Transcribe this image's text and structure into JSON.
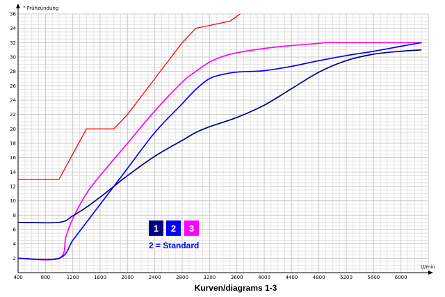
{
  "chart_data": {
    "type": "line",
    "ylabel": "° Frühzündung",
    "xlabel": "U/min",
    "caption": "Kurven/diagrams  1-3",
    "xlim": [
      400,
      6400
    ],
    "ylim": [
      0,
      36
    ],
    "x_ticks": [
      "400",
      "800",
      "1200",
      "1600",
      "2000",
      "2400",
      "2800",
      "3200",
      "3600",
      "4000",
      "4400",
      "4800",
      "5200",
      "5600",
      "6000"
    ],
    "y_ticks": [
      "2",
      "4",
      "6",
      "8",
      "10",
      "12",
      "14",
      "16",
      "18",
      "20",
      "22",
      "24",
      "26",
      "28",
      "30",
      "32",
      "34",
      "36"
    ],
    "grid": true,
    "legend": {
      "badges": [
        {
          "label": "1",
          "color": "#000080"
        },
        {
          "label": "2",
          "color": "#0000ff"
        },
        {
          "label": "3",
          "color": "#ff00ff"
        }
      ],
      "note": "2 = Standard",
      "note_color": "#0000ff"
    },
    "series": [
      {
        "color": "#ff0000",
        "x": [
          400,
          1000,
          1400,
          1800,
          2000,
          2400,
          2800,
          3000,
          3500,
          3650
        ],
        "y": [
          13,
          13,
          20,
          20,
          22,
          27,
          32,
          34,
          35,
          36
        ]
      },
      {
        "name": "3",
        "color": "#ff00ff",
        "x": [
          400,
          1000,
          1100,
          1200,
          1400,
          1600,
          2000,
          2400,
          2800,
          3000,
          3200,
          3400,
          3600,
          4000,
          4400,
          4800,
          4900,
          5200,
          5600,
          6000,
          6300
        ],
        "y": [
          2,
          2,
          5,
          7.5,
          11,
          13.5,
          18,
          22.5,
          26.5,
          28,
          29.3,
          30.1,
          30.6,
          31.2,
          31.6,
          31.9,
          32,
          32,
          32,
          32,
          32
        ]
      },
      {
        "name": "2",
        "color": "#0000ff",
        "x": [
          400,
          1000,
          1200,
          1400,
          1600,
          1800,
          2000,
          2400,
          2800,
          3000,
          3200,
          3400,
          3600,
          3800,
          4000,
          4400,
          4800,
          5200,
          5600,
          6000,
          6300
        ],
        "y": [
          2,
          2,
          4.5,
          7,
          9.5,
          12,
          14.5,
          19.5,
          23.5,
          25.5,
          27,
          27.6,
          27.9,
          28,
          28.1,
          28.7,
          29.5,
          30.2,
          30.8,
          31.5,
          32
        ]
      },
      {
        "name": "1",
        "color": "#000080",
        "x": [
          400,
          1000,
          1200,
          1400,
          1600,
          1800,
          2000,
          2400,
          2800,
          3000,
          3200,
          3600,
          4000,
          4400,
          4800,
          5200,
          5600,
          6000,
          6300
        ],
        "y": [
          7,
          7,
          7.9,
          9.1,
          10.5,
          12,
          13.5,
          16.2,
          18.4,
          19.5,
          20.3,
          21.6,
          23.3,
          25.6,
          27.9,
          29.5,
          30.4,
          30.8,
          31
        ]
      }
    ]
  }
}
